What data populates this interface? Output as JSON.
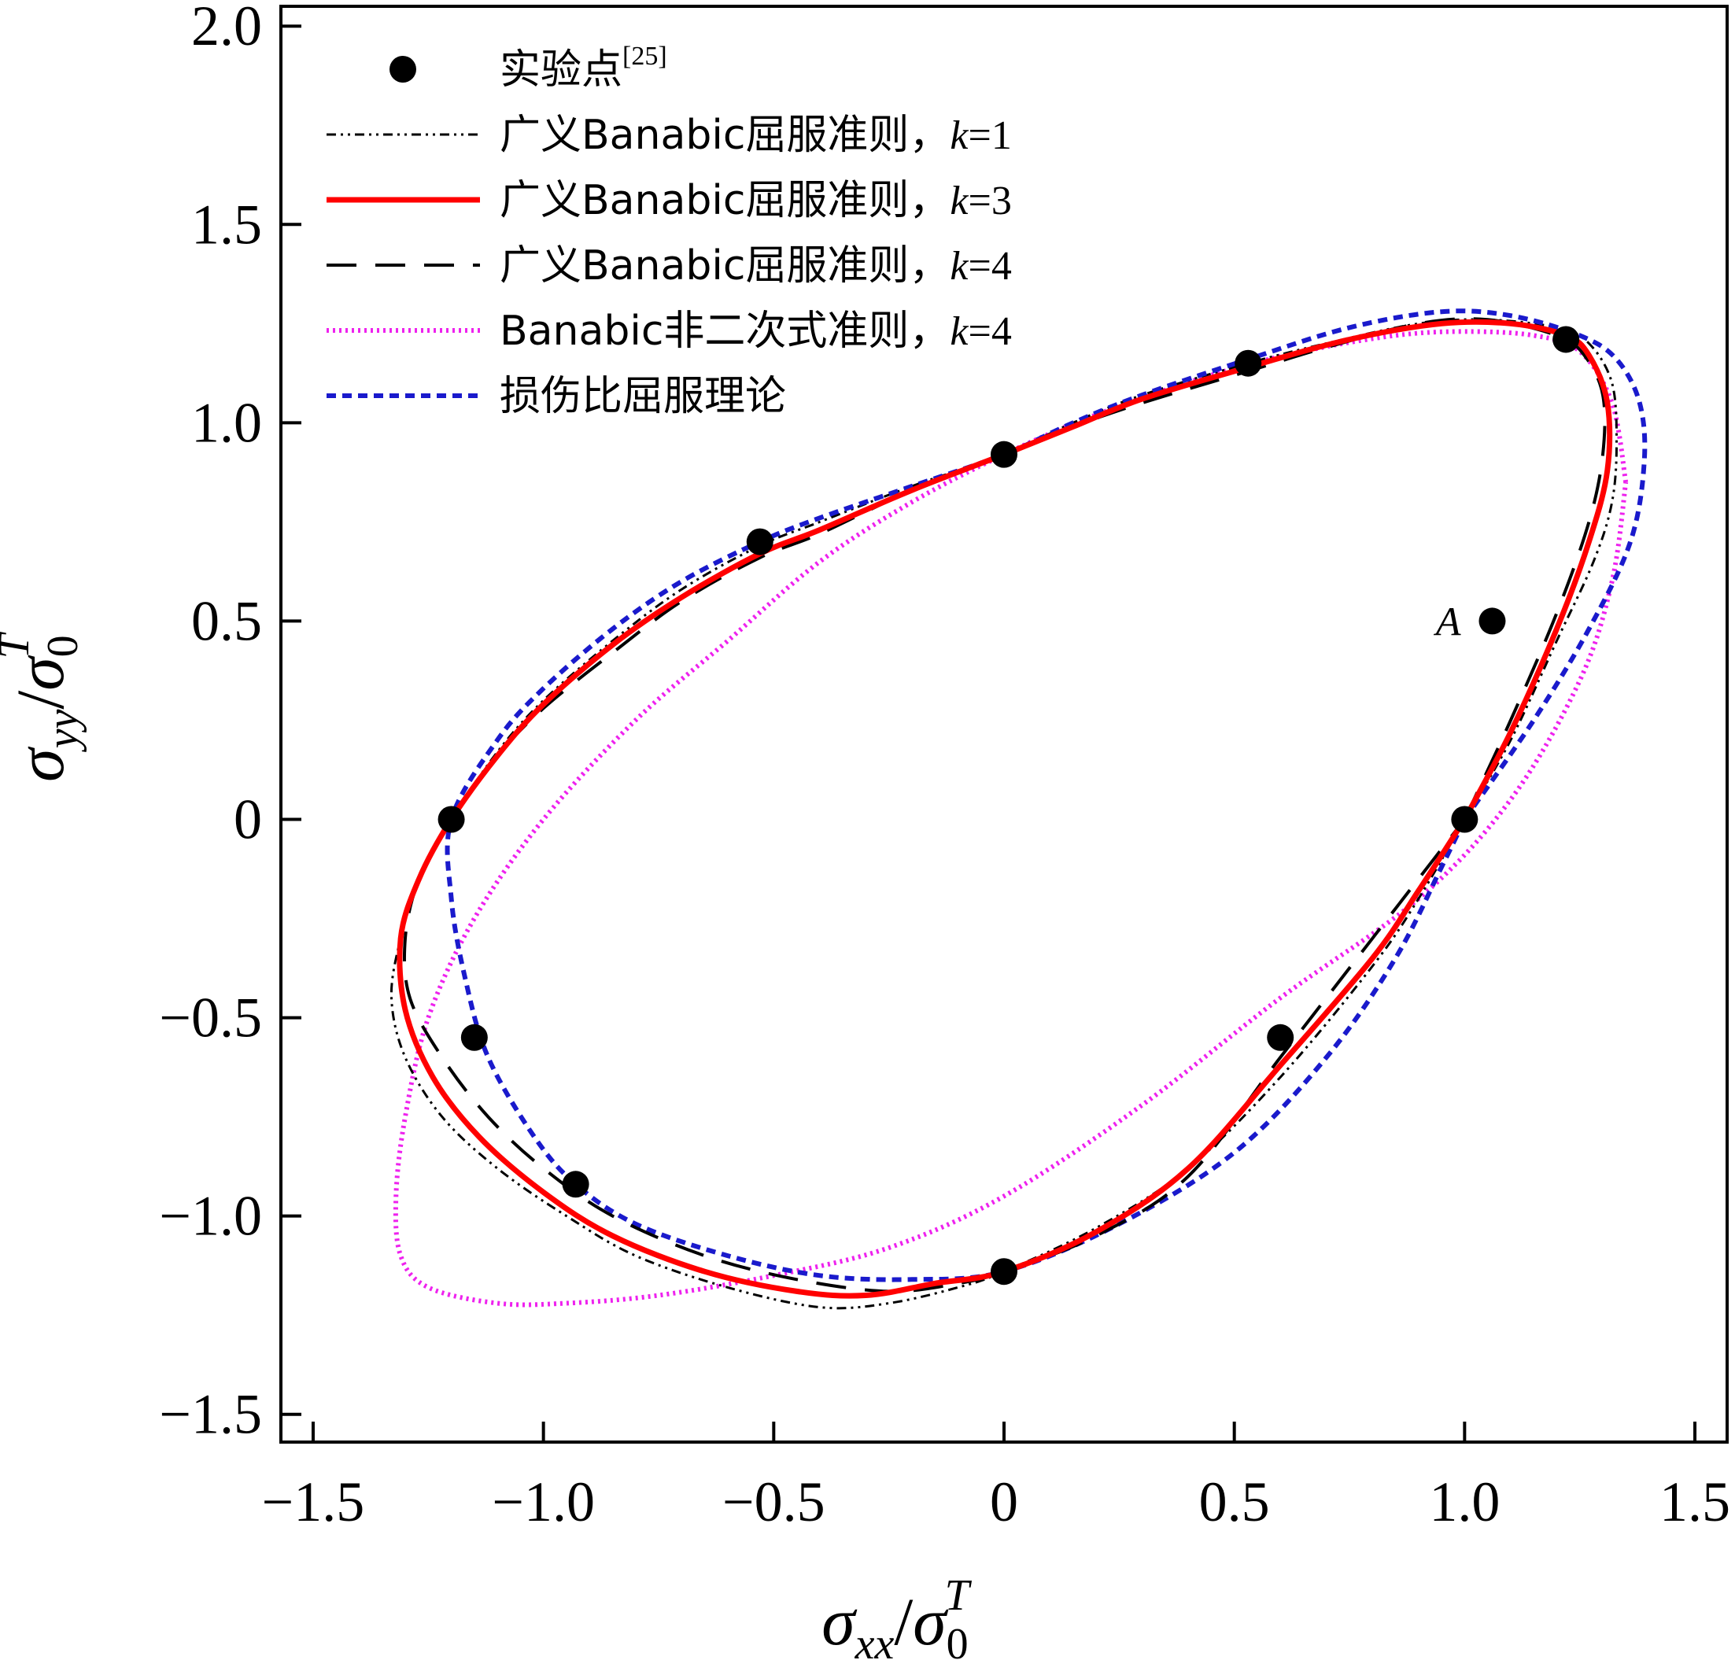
{
  "chart_data": {
    "type": "scatter",
    "title": "",
    "xlabel": "σxx/σ0T",
    "ylabel": "σyy/σ0T",
    "axis_labels": {
      "x": {
        "main": "σ",
        "sub": "xx",
        "slash": "/",
        "main2": "σ",
        "sub2": "0",
        "sup2": "T"
      },
      "y": {
        "main": "σ",
        "sub": "yy",
        "slash": "/",
        "main2": "σ",
        "sub2": "0",
        "sup2": "T"
      }
    },
    "xlim": [
      -1.57,
      1.57
    ],
    "ylim": [
      -1.57,
      2.05
    ],
    "xticks": [
      -1.5,
      -1.0,
      -0.5,
      0,
      0.5,
      1.0,
      1.5
    ],
    "xtick_labels": [
      "−1.5",
      "−1.0",
      "−0.5",
      "0",
      "0.5",
      "1.0",
      "1.5"
    ],
    "yticks": [
      -1.5,
      -1.0,
      -0.5,
      0,
      0.5,
      1.0,
      1.5,
      2.0
    ],
    "ytick_labels": [
      "−1.5",
      "−1.0",
      "−0.5",
      "0",
      "0.5",
      "1.0",
      "1.5",
      "2.0"
    ],
    "grid": false,
    "legend_position": "top-left",
    "legend": [
      {
        "label": "实验点",
        "sup": "[25]",
        "style": "marker",
        "color": "#000000"
      },
      {
        "label": "广义Banabic屈服准则，",
        "k_label": "k",
        "k_value": "=1",
        "style": "dashdot",
        "color": "#000000"
      },
      {
        "label": "广义Banabic屈服准则，",
        "k_label": "k",
        "k_value": "=3",
        "style": "solid",
        "color": "#ff0000"
      },
      {
        "label": "广义Banabic屈服准则，",
        "k_label": "k",
        "k_value": "=4",
        "style": "dashed",
        "color": "#000000"
      },
      {
        "label": "Banabic非二次式准则，",
        "k_label": "k",
        "k_value": "=4",
        "style": "dotted",
        "color": "#ee22ee"
      },
      {
        "label": "损伤比屈服理论",
        "style": "shortdash",
        "color": "#1a1acc"
      }
    ],
    "annotations": [
      {
        "text": "A",
        "x": 1.06,
        "y": 0.5
      }
    ],
    "experimental_points": [
      {
        "x": 1.0,
        "y": 0.0
      },
      {
        "x": 1.22,
        "y": 1.21
      },
      {
        "x": 0.53,
        "y": 1.15
      },
      {
        "x": 0.0,
        "y": 0.92
      },
      {
        "x": -0.53,
        "y": 0.7
      },
      {
        "x": -1.2,
        "y": 0.0
      },
      {
        "x": -1.15,
        "y": -0.55
      },
      {
        "x": -0.93,
        "y": -0.92
      },
      {
        "x": 0.0,
        "y": -1.14
      },
      {
        "x": 0.6,
        "y": -0.55
      },
      {
        "x": 1.06,
        "y": 0.5
      }
    ],
    "series": [
      {
        "name": "广义Banabic屈服准则，k=1",
        "color": "#000000",
        "style": "dashdot",
        "points": [
          [
            1.0,
            0.0
          ],
          [
            1.1,
            0.2
          ],
          [
            1.2,
            0.45
          ],
          [
            1.28,
            0.65
          ],
          [
            1.32,
            0.8
          ],
          [
            1.33,
            0.95
          ],
          [
            1.32,
            1.1
          ],
          [
            1.27,
            1.2
          ],
          [
            1.2,
            1.24
          ],
          [
            1.05,
            1.26
          ],
          [
            0.9,
            1.25
          ],
          [
            0.7,
            1.2
          ],
          [
            0.53,
            1.15
          ],
          [
            0.3,
            1.07
          ],
          [
            0.15,
            1.0
          ],
          [
            0.0,
            0.92
          ],
          [
            -0.2,
            0.84
          ],
          [
            -0.4,
            0.75
          ],
          [
            -0.53,
            0.69
          ],
          [
            -0.7,
            0.58
          ],
          [
            -0.85,
            0.45
          ],
          [
            -1.0,
            0.3
          ],
          [
            -1.1,
            0.17
          ],
          [
            -1.2,
            0.0
          ],
          [
            -1.27,
            -0.15
          ],
          [
            -1.31,
            -0.3
          ],
          [
            -1.33,
            -0.45
          ],
          [
            -1.3,
            -0.6
          ],
          [
            -1.22,
            -0.75
          ],
          [
            -1.1,
            -0.88
          ],
          [
            -0.95,
            -1.0
          ],
          [
            -0.8,
            -1.1
          ],
          [
            -0.6,
            -1.18
          ],
          [
            -0.4,
            -1.23
          ],
          [
            -0.25,
            -1.22
          ],
          [
            -0.1,
            -1.18
          ],
          [
            0.0,
            -1.14
          ],
          [
            0.2,
            -1.03
          ],
          [
            0.4,
            -0.88
          ],
          [
            0.6,
            -0.65
          ],
          [
            0.8,
            -0.37
          ],
          [
            0.9,
            -0.2
          ],
          [
            1.0,
            0.0
          ]
        ]
      },
      {
        "name": "广义Banabic屈服准则，k=3",
        "color": "#ff0000",
        "style": "solid",
        "points": [
          [
            1.0,
            0.0
          ],
          [
            1.1,
            0.22
          ],
          [
            1.2,
            0.48
          ],
          [
            1.27,
            0.7
          ],
          [
            1.31,
            0.88
          ],
          [
            1.31,
            1.05
          ],
          [
            1.27,
            1.17
          ],
          [
            1.22,
            1.22
          ],
          [
            1.1,
            1.25
          ],
          [
            0.95,
            1.25
          ],
          [
            0.75,
            1.21
          ],
          [
            0.53,
            1.14
          ],
          [
            0.3,
            1.06
          ],
          [
            0.15,
            0.99
          ],
          [
            0.0,
            0.92
          ],
          [
            -0.2,
            0.83
          ],
          [
            -0.4,
            0.73
          ],
          [
            -0.53,
            0.67
          ],
          [
            -0.7,
            0.56
          ],
          [
            -0.85,
            0.44
          ],
          [
            -1.0,
            0.29
          ],
          [
            -1.1,
            0.16
          ],
          [
            -1.2,
            0.0
          ],
          [
            -1.27,
            -0.15
          ],
          [
            -1.31,
            -0.3
          ],
          [
            -1.3,
            -0.48
          ],
          [
            -1.24,
            -0.65
          ],
          [
            -1.14,
            -0.8
          ],
          [
            -1.0,
            -0.94
          ],
          [
            -0.85,
            -1.05
          ],
          [
            -0.65,
            -1.14
          ],
          [
            -0.45,
            -1.19
          ],
          [
            -0.3,
            -1.2
          ],
          [
            -0.15,
            -1.17
          ],
          [
            0.0,
            -1.14
          ],
          [
            0.2,
            -1.04
          ],
          [
            0.4,
            -0.88
          ],
          [
            0.6,
            -0.62
          ],
          [
            0.8,
            -0.35
          ],
          [
            0.9,
            -0.18
          ],
          [
            1.0,
            0.0
          ]
        ]
      },
      {
        "name": "广义Banabic屈服准则，k=4",
        "color": "#000000",
        "style": "dashed",
        "points": [
          [
            1.0,
            0.0
          ],
          [
            1.1,
            0.25
          ],
          [
            1.2,
            0.52
          ],
          [
            1.27,
            0.75
          ],
          [
            1.3,
            0.92
          ],
          [
            1.3,
            1.07
          ],
          [
            1.26,
            1.17
          ],
          [
            1.2,
            1.22
          ],
          [
            1.05,
            1.26
          ],
          [
            0.9,
            1.25
          ],
          [
            0.7,
            1.19
          ],
          [
            0.53,
            1.13
          ],
          [
            0.3,
            1.05
          ],
          [
            0.15,
            0.99
          ],
          [
            0.0,
            0.92
          ],
          [
            -0.2,
            0.83
          ],
          [
            -0.4,
            0.72
          ],
          [
            -0.53,
            0.66
          ],
          [
            -0.7,
            0.55
          ],
          [
            -0.85,
            0.42
          ],
          [
            -1.0,
            0.28
          ],
          [
            -1.1,
            0.16
          ],
          [
            -1.2,
            0.0
          ],
          [
            -1.27,
            -0.15
          ],
          [
            -1.3,
            -0.3
          ],
          [
            -1.29,
            -0.45
          ],
          [
            -1.22,
            -0.6
          ],
          [
            -1.12,
            -0.75
          ],
          [
            -1.0,
            -0.88
          ],
          [
            -0.85,
            -1.0
          ],
          [
            -0.65,
            -1.1
          ],
          [
            -0.45,
            -1.16
          ],
          [
            -0.25,
            -1.19
          ],
          [
            -0.1,
            -1.17
          ],
          [
            0.0,
            -1.14
          ],
          [
            0.2,
            -1.05
          ],
          [
            0.4,
            -0.9
          ],
          [
            0.6,
            -0.6
          ],
          [
            0.8,
            -0.3
          ],
          [
            0.9,
            -0.15
          ],
          [
            1.0,
            0.0
          ]
        ]
      },
      {
        "name": "Banabic非二次式准则，k=4",
        "color": "#ee22ee",
        "style": "dotted",
        "points": [
          [
            1.35,
            0.85
          ],
          [
            1.32,
            1.05
          ],
          [
            1.25,
            1.18
          ],
          [
            1.15,
            1.22
          ],
          [
            1.0,
            1.23
          ],
          [
            0.85,
            1.22
          ],
          [
            0.65,
            1.18
          ],
          [
            0.45,
            1.12
          ],
          [
            0.2,
            1.02
          ],
          [
            0.0,
            0.92
          ],
          [
            -0.2,
            0.8
          ],
          [
            -0.4,
            0.65
          ],
          [
            -0.6,
            0.45
          ],
          [
            -0.8,
            0.25
          ],
          [
            -1.0,
            0.0
          ],
          [
            -1.15,
            -0.25
          ],
          [
            -1.25,
            -0.5
          ],
          [
            -1.3,
            -0.75
          ],
          [
            -1.32,
            -0.95
          ],
          [
            -1.31,
            -1.1
          ],
          [
            -1.25,
            -1.18
          ],
          [
            -1.1,
            -1.22
          ],
          [
            -0.95,
            -1.22
          ],
          [
            -0.75,
            -1.2
          ],
          [
            -0.5,
            -1.15
          ],
          [
            -0.25,
            -1.08
          ],
          [
            0.0,
            -0.95
          ],
          [
            0.3,
            -0.72
          ],
          [
            0.6,
            -0.45
          ],
          [
            0.9,
            -0.2
          ],
          [
            1.1,
            0.05
          ],
          [
            1.25,
            0.35
          ],
          [
            1.32,
            0.6
          ],
          [
            1.35,
            0.85
          ]
        ]
      },
      {
        "name": "损伤比屈服理论",
        "color": "#1a1acc",
        "style": "shortdash",
        "points": [
          [
            1.0,
            0.0
          ],
          [
            1.15,
            0.25
          ],
          [
            1.27,
            0.48
          ],
          [
            1.36,
            0.7
          ],
          [
            1.39,
            0.9
          ],
          [
            1.38,
            1.05
          ],
          [
            1.33,
            1.16
          ],
          [
            1.25,
            1.22
          ],
          [
            1.1,
            1.27
          ],
          [
            0.95,
            1.28
          ],
          [
            0.75,
            1.24
          ],
          [
            0.53,
            1.16
          ],
          [
            0.3,
            1.07
          ],
          [
            0.15,
            1.0
          ],
          [
            0.0,
            0.92
          ],
          [
            -0.2,
            0.84
          ],
          [
            -0.4,
            0.76
          ],
          [
            -0.53,
            0.7
          ],
          [
            -0.7,
            0.6
          ],
          [
            -0.85,
            0.48
          ],
          [
            -1.0,
            0.33
          ],
          [
            -1.1,
            0.2
          ],
          [
            -1.2,
            0.0
          ],
          [
            -1.2,
            -0.2
          ],
          [
            -1.17,
            -0.4
          ],
          [
            -1.12,
            -0.6
          ],
          [
            -1.02,
            -0.8
          ],
          [
            -0.93,
            -0.92
          ],
          [
            -0.8,
            -1.02
          ],
          [
            -0.6,
            -1.1
          ],
          [
            -0.4,
            -1.15
          ],
          [
            -0.2,
            -1.16
          ],
          [
            0.0,
            -1.14
          ],
          [
            0.25,
            -1.02
          ],
          [
            0.5,
            -0.84
          ],
          [
            0.7,
            -0.6
          ],
          [
            0.85,
            -0.35
          ],
          [
            0.95,
            -0.12
          ],
          [
            1.0,
            0.0
          ]
        ]
      }
    ]
  }
}
